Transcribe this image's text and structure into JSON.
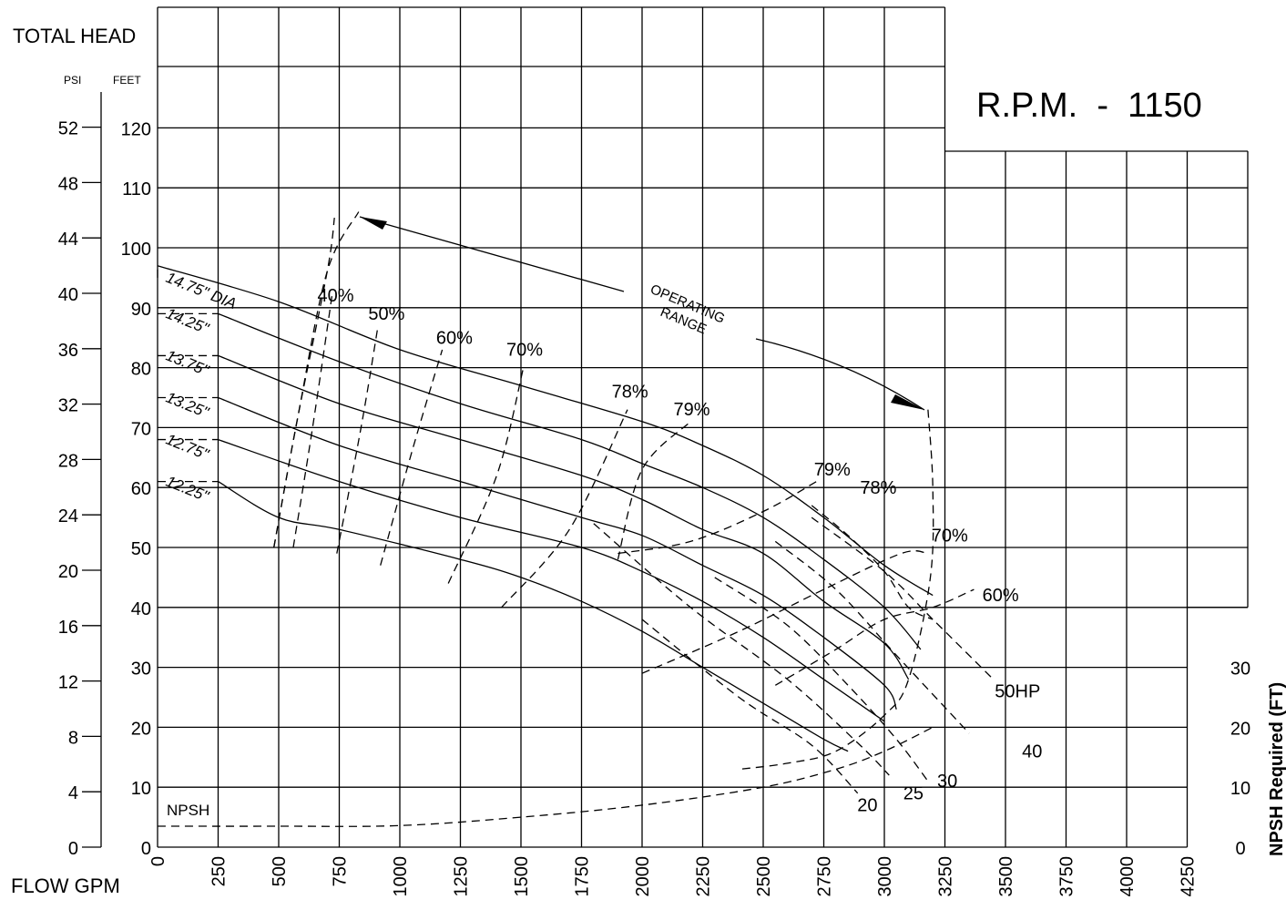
{
  "header": {
    "total_head": "TOTAL HEAD",
    "psi": "PSI",
    "feet": "FEET",
    "rpm": "R.P.M.  -  1150",
    "flow": "FLOW  GPM",
    "npsh_axis": "NPSH Required (FT)",
    "operating_range": [
      "OPERATING",
      "RANGE"
    ],
    "npsh_curve_label": "NPSH"
  },
  "chart_data": {
    "type": "line",
    "x_unit": "GPM",
    "y_unit": "FEET",
    "xlim": [
      0,
      4250
    ],
    "ylim": [
      0,
      120
    ],
    "grid": true,
    "x_ticks": [
      "0",
      "250",
      "500",
      "750",
      "1000",
      "1250",
      "1500",
      "1750",
      "2000",
      "2250",
      "2500",
      "2750",
      "3000",
      "3250",
      "3500",
      "3750",
      "4000",
      "4250"
    ],
    "feet_ticks": [
      "0",
      "10",
      "20",
      "30",
      "40",
      "50",
      "60",
      "70",
      "80",
      "90",
      "100",
      "110",
      "120"
    ],
    "psi_ticks": [
      "0",
      "4",
      "8",
      "12",
      "16",
      "20",
      "24",
      "28",
      "32",
      "36",
      "40",
      "44",
      "48",
      "52"
    ],
    "npsh_ticks": [
      "0",
      "10",
      "20",
      "30"
    ],
    "impeller_curves": [
      {
        "label": "14.75\" DIA",
        "label_at": [
          0,
          95
        ],
        "points": [
          [
            0,
            97
          ],
          [
            500,
            91
          ],
          [
            1000,
            83
          ],
          [
            1500,
            77
          ],
          [
            2000,
            71
          ],
          [
            2250,
            67
          ],
          [
            2500,
            62
          ],
          [
            2750,
            55
          ],
          [
            3000,
            47
          ],
          [
            3200,
            42
          ]
        ]
      },
      {
        "label": "14.25\"",
        "label_at": [
          0,
          89
        ],
        "points": [
          [
            250,
            89
          ],
          [
            750,
            81
          ],
          [
            1250,
            74
          ],
          [
            1750,
            68
          ],
          [
            2000,
            64
          ],
          [
            2250,
            60
          ],
          [
            2500,
            55
          ],
          [
            2750,
            48
          ],
          [
            3000,
            40
          ],
          [
            3150,
            33
          ]
        ]
      },
      {
        "label": "13.75\"",
        "label_at": [
          0,
          82
        ],
        "points": [
          [
            250,
            82
          ],
          [
            750,
            74
          ],
          [
            1250,
            68
          ],
          [
            1750,
            62
          ],
          [
            2000,
            58
          ],
          [
            2250,
            53
          ],
          [
            2500,
            49
          ],
          [
            2750,
            41
          ],
          [
            3000,
            34
          ],
          [
            3100,
            28
          ]
        ]
      },
      {
        "label": "13.25\"",
        "label_at": [
          0,
          75
        ],
        "points": [
          [
            250,
            75
          ],
          [
            750,
            67
          ],
          [
            1250,
            61
          ],
          [
            1750,
            55
          ],
          [
            2000,
            52
          ],
          [
            2250,
            47
          ],
          [
            2500,
            42
          ],
          [
            2750,
            35
          ],
          [
            3000,
            27
          ],
          [
            3050,
            23
          ]
        ]
      },
      {
        "label": "12.75\"",
        "label_at": [
          0,
          68
        ],
        "points": [
          [
            250,
            68
          ],
          [
            750,
            61
          ],
          [
            1250,
            55
          ],
          [
            1750,
            50
          ],
          [
            2000,
            46
          ],
          [
            2250,
            41
          ],
          [
            2500,
            35
          ],
          [
            2750,
            28
          ],
          [
            3000,
            21
          ]
        ]
      },
      {
        "label": "12.25\"",
        "label_at": [
          0,
          61
        ],
        "points": [
          [
            250,
            61
          ],
          [
            500,
            55
          ],
          [
            750,
            53
          ],
          [
            1250,
            48
          ],
          [
            1500,
            45
          ],
          [
            1750,
            41
          ],
          [
            2000,
            36
          ],
          [
            2250,
            30
          ],
          [
            2500,
            24
          ],
          [
            2750,
            18
          ],
          [
            2850,
            16
          ]
        ]
      }
    ],
    "efficiency_curves": [
      {
        "label": "40%",
        "label_at": [
          735,
          91
        ],
        "points": [
          [
            480,
            50
          ],
          [
            580,
            72
          ],
          [
            700,
            96
          ],
          [
            730,
            105
          ]
        ]
      },
      {
        "label": "40%",
        "label_at": [
          735,
          91
        ],
        "points": [
          [
            560,
            50
          ],
          [
            640,
            70
          ],
          [
            720,
            92
          ]
        ]
      },
      {
        "label": "50%",
        "label_at": [
          945,
          88
        ],
        "points": [
          [
            740,
            49
          ],
          [
            840,
            70
          ],
          [
            910,
            87
          ]
        ]
      },
      {
        "label": "60%",
        "label_at": [
          1225,
          84
        ],
        "points": [
          [
            920,
            47
          ],
          [
            1050,
            66
          ],
          [
            1175,
            83
          ]
        ]
      },
      {
        "label": "70%",
        "label_at": [
          1515,
          82
        ],
        "points": [
          [
            1200,
            44
          ],
          [
            1400,
            62
          ],
          [
            1510,
            80
          ]
        ]
      },
      {
        "label": "78%",
        "label_at": [
          1950,
          75
        ],
        "points": [
          [
            1420,
            40
          ],
          [
            1700,
            53
          ],
          [
            1940,
            73
          ]
        ]
      },
      {
        "label": "79%",
        "label_at": [
          2205,
          72
        ],
        "points": [
          [
            1900,
            48
          ],
          [
            2000,
            63
          ],
          [
            2200,
            71
          ]
        ]
      },
      {
        "label": "79%",
        "label_at": [
          2785,
          62
        ],
        "points": [
          [
            1900,
            49
          ],
          [
            2200,
            51
          ],
          [
            2500,
            56
          ],
          [
            2720,
            61
          ]
        ]
      },
      {
        "label": "78%",
        "label_at": [
          2975,
          59
        ],
        "points": [
          [
            2700,
            57
          ],
          [
            2850,
            52
          ],
          [
            3000,
            46
          ],
          [
            3100,
            40
          ],
          [
            3200,
            38
          ]
        ]
      },
      {
        "label": "70%",
        "label_at": [
          3270,
          51
        ],
        "points": [
          [
            2000,
            29
          ],
          [
            2400,
            36
          ],
          [
            2750,
            43
          ],
          [
            3070,
            49
          ],
          [
            3180,
            49
          ]
        ]
      },
      {
        "label": "60%",
        "label_at": [
          3480,
          41
        ],
        "points": [
          [
            2550,
            27
          ],
          [
            2800,
            33
          ],
          [
            3000,
            38
          ],
          [
            3200,
            40
          ],
          [
            3370,
            43
          ]
        ]
      }
    ],
    "horsepower_curves": [
      {
        "label": "50HP",
        "label_at": [
          3550,
          25
        ],
        "points": [
          [
            2700,
            55
          ],
          [
            3000,
            46
          ],
          [
            3200,
            38
          ],
          [
            3450,
            28
          ]
        ]
      },
      {
        "label": "40",
        "label_at": [
          3610,
          15
        ],
        "points": [
          [
            2550,
            51
          ],
          [
            2800,
            43
          ],
          [
            3050,
            32
          ],
          [
            3350,
            19
          ]
        ]
      },
      {
        "label": "30",
        "label_at": [
          3260,
          10
        ],
        "points": [
          [
            2300,
            45
          ],
          [
            2600,
            37
          ],
          [
            2850,
            27
          ],
          [
            3050,
            18
          ],
          [
            3180,
            11
          ]
        ]
      },
      {
        "label": "25",
        "label_at": [
          3120,
          8
        ],
        "points": [
          [
            1800,
            54
          ],
          [
            2200,
            40
          ],
          [
            2600,
            28
          ],
          [
            2900,
            17
          ],
          [
            3020,
            12
          ]
        ]
      },
      {
        "label": "20",
        "label_at": [
          2930,
          6
        ],
        "points": [
          [
            2000,
            38
          ],
          [
            2400,
            25
          ],
          [
            2700,
            17
          ],
          [
            2890,
            9
          ]
        ]
      }
    ],
    "operating_range_boundary": {
      "left": [
        [
          480,
          50
        ],
        [
          580,
          72
        ],
        [
          700,
          96
        ],
        [
          830,
          106
        ]
      ],
      "right": [
        [
          3180,
          73
        ],
        [
          3200,
          60
        ],
        [
          3190,
          45
        ],
        [
          3100,
          28
        ],
        [
          3000,
          22
        ],
        [
          2800,
          16
        ],
        [
          2600,
          14
        ],
        [
          2400,
          13
        ]
      ]
    },
    "npsh_curve": [
      [
        0,
        3.5
      ],
      [
        500,
        3.5
      ],
      [
        1000,
        3.6
      ],
      [
        1500,
        5
      ],
      [
        2000,
        7
      ],
      [
        2500,
        10
      ],
      [
        2800,
        13
      ],
      [
        3000,
        16
      ],
      [
        3200,
        20
      ]
    ]
  }
}
